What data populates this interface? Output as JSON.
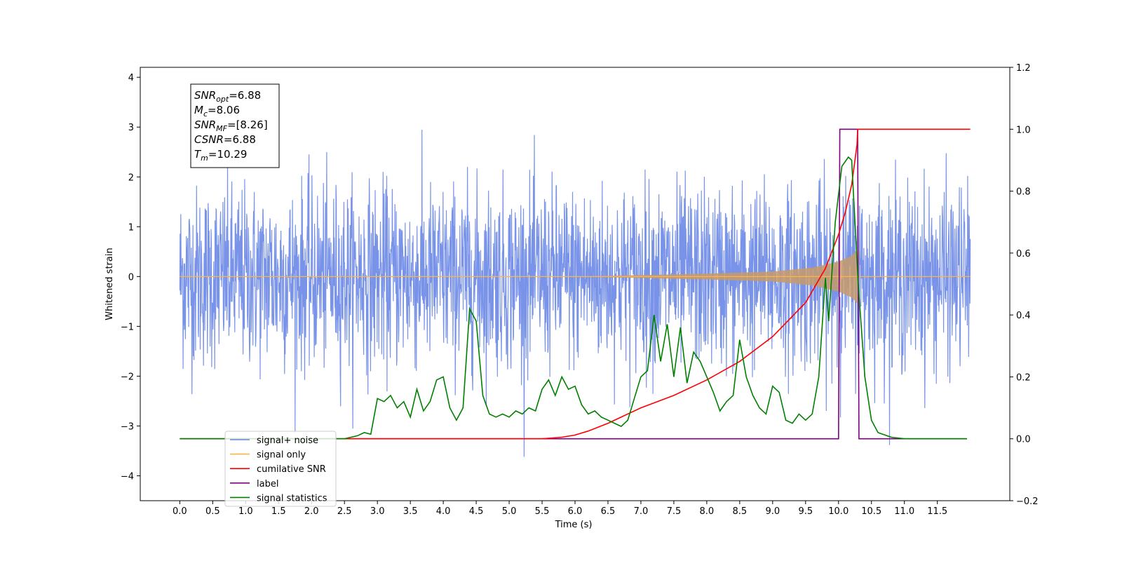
{
  "chart_data": {
    "type": "line",
    "xlabel": "Time (s)",
    "ylabel": "Whitened strain",
    "xlim": [
      -0.6,
      12.6
    ],
    "ylim": [
      -4.5,
      4.2
    ],
    "y2lim": [
      -0.2,
      1.2
    ],
    "x_ticks": [
      "0.0",
      "0.5",
      "1.0",
      "1.5",
      "2.0",
      "2.5",
      "3.0",
      "3.5",
      "4.0",
      "4.5",
      "5.0",
      "5.5",
      "6.0",
      "6.5",
      "7.0",
      "7.5",
      "8.0",
      "8.5",
      "9.0",
      "9.5",
      "10.0",
      "10.5",
      "11.0",
      "11.5"
    ],
    "y_ticks": [
      4,
      3,
      2,
      1,
      0,
      -1,
      -2,
      -3,
      -4
    ],
    "y_tick_labels": [
      "4",
      "3",
      "2",
      "1",
      "0",
      "−1",
      "−2",
      "−3",
      "−4"
    ],
    "y2_ticks": [
      1.2,
      1.0,
      0.8,
      0.6,
      0.4,
      0.2,
      0.0,
      -0.2
    ],
    "y2_tick_labels": [
      "1.2",
      "1.0",
      "0.8",
      "0.6",
      "0.4",
      "0.2",
      "0.0",
      "−0.2"
    ],
    "annotation": [
      {
        "base": "SNR",
        "sub": "opt",
        "value": "=6.88"
      },
      {
        "base": "M",
        "sub": "c",
        "value": "=8.06"
      },
      {
        "base": "SNR",
        "sub": "MF",
        "value": "=[8.26]"
      },
      {
        "base": "CSNR",
        "sub": "",
        "value": "=6.88"
      },
      {
        "base": "T",
        "sub": "m",
        "value": "=10.29"
      }
    ],
    "legend_position": "lower-left",
    "series": [
      {
        "name": "signal+ noise",
        "color": "#6a87e6",
        "axis": "left",
        "description_values": {
          "std": 0.9,
          "range": [
            0,
            12
          ]
        }
      },
      {
        "name": "signal only",
        "color": "#ffb347",
        "axis": "left",
        "points": [
          [
            0,
            0
          ],
          [
            6.0,
            0
          ],
          [
            7.0,
            0.03
          ],
          [
            8.0,
            0.06
          ],
          [
            9.0,
            0.1
          ],
          [
            9.6,
            0.18
          ],
          [
            10.0,
            0.3
          ],
          [
            10.2,
            0.42
          ],
          [
            10.29,
            0.55
          ],
          [
            10.29,
            0
          ],
          [
            12,
            0
          ]
        ]
      },
      {
        "name": "cumilative SNR",
        "color": "#ff0000",
        "axis": "right",
        "points": [
          [
            0,
            0
          ],
          [
            5.5,
            0.0
          ],
          [
            5.8,
            0.005
          ],
          [
            6.0,
            0.012
          ],
          [
            6.2,
            0.025
          ],
          [
            6.5,
            0.05
          ],
          [
            7.0,
            0.1
          ],
          [
            7.5,
            0.14
          ],
          [
            8.0,
            0.19
          ],
          [
            8.5,
            0.25
          ],
          [
            9.0,
            0.33
          ],
          [
            9.5,
            0.44
          ],
          [
            9.8,
            0.55
          ],
          [
            10.0,
            0.66
          ],
          [
            10.1,
            0.73
          ],
          [
            10.2,
            0.82
          ],
          [
            10.25,
            0.9
          ],
          [
            10.28,
            0.95
          ],
          [
            10.29,
            1.0
          ],
          [
            11.0,
            1.0
          ],
          [
            12.0,
            1.0
          ]
        ]
      },
      {
        "name": "label",
        "color": "#800080",
        "axis": "right",
        "points": [
          [
            0,
            0
          ],
          [
            10.0,
            0
          ],
          [
            10.02,
            1.0
          ],
          [
            10.29,
            1.0
          ],
          [
            10.31,
            0
          ],
          [
            11.95,
            0
          ]
        ]
      },
      {
        "name": "signal statistics",
        "color": "#008000",
        "axis": "right",
        "points": [
          [
            0,
            0
          ],
          [
            2.5,
            0.0
          ],
          [
            2.6,
            0.005
          ],
          [
            2.7,
            0.01
          ],
          [
            2.8,
            0.02
          ],
          [
            2.9,
            0.015
          ],
          [
            3.0,
            0.13
          ],
          [
            3.1,
            0.12
          ],
          [
            3.2,
            0.14
          ],
          [
            3.3,
            0.1
          ],
          [
            3.4,
            0.12
          ],
          [
            3.5,
            0.07
          ],
          [
            3.6,
            0.16
          ],
          [
            3.7,
            0.09
          ],
          [
            3.8,
            0.12
          ],
          [
            3.9,
            0.19
          ],
          [
            4.0,
            0.2
          ],
          [
            4.1,
            0.1
          ],
          [
            4.2,
            0.06
          ],
          [
            4.3,
            0.1
          ],
          [
            4.4,
            0.42
          ],
          [
            4.5,
            0.38
          ],
          [
            4.6,
            0.14
          ],
          [
            4.7,
            0.08
          ],
          [
            4.8,
            0.07
          ],
          [
            4.9,
            0.08
          ],
          [
            5.0,
            0.07
          ],
          [
            5.1,
            0.09
          ],
          [
            5.2,
            0.08
          ],
          [
            5.3,
            0.1
          ],
          [
            5.4,
            0.09
          ],
          [
            5.5,
            0.16
          ],
          [
            5.6,
            0.19
          ],
          [
            5.7,
            0.14
          ],
          [
            5.8,
            0.2
          ],
          [
            5.9,
            0.16
          ],
          [
            6.0,
            0.17
          ],
          [
            6.1,
            0.11
          ],
          [
            6.2,
            0.08
          ],
          [
            6.3,
            0.09
          ],
          [
            6.4,
            0.07
          ],
          [
            6.5,
            0.06
          ],
          [
            6.6,
            0.05
          ],
          [
            6.7,
            0.04
          ],
          [
            6.8,
            0.06
          ],
          [
            6.9,
            0.13
          ],
          [
            7.0,
            0.2
          ],
          [
            7.1,
            0.22
          ],
          [
            7.2,
            0.4
          ],
          [
            7.3,
            0.25
          ],
          [
            7.4,
            0.37
          ],
          [
            7.5,
            0.2
          ],
          [
            7.6,
            0.36
          ],
          [
            7.7,
            0.18
          ],
          [
            7.8,
            0.28
          ],
          [
            7.9,
            0.25
          ],
          [
            8.0,
            0.2
          ],
          [
            8.1,
            0.15
          ],
          [
            8.2,
            0.09
          ],
          [
            8.3,
            0.12
          ],
          [
            8.4,
            0.14
          ],
          [
            8.5,
            0.32
          ],
          [
            8.6,
            0.2
          ],
          [
            8.7,
            0.14
          ],
          [
            8.8,
            0.1
          ],
          [
            8.9,
            0.08
          ],
          [
            9.0,
            0.17
          ],
          [
            9.1,
            0.15
          ],
          [
            9.2,
            0.06
          ],
          [
            9.3,
            0.05
          ],
          [
            9.4,
            0.08
          ],
          [
            9.5,
            0.06
          ],
          [
            9.6,
            0.08
          ],
          [
            9.7,
            0.2
          ],
          [
            9.8,
            0.52
          ],
          [
            9.85,
            0.38
          ],
          [
            9.95,
            0.7
          ],
          [
            10.05,
            0.88
          ],
          [
            10.15,
            0.91
          ],
          [
            10.2,
            0.9
          ],
          [
            10.25,
            0.7
          ],
          [
            10.3,
            0.5
          ],
          [
            10.4,
            0.2
          ],
          [
            10.5,
            0.06
          ],
          [
            10.6,
            0.02
          ],
          [
            10.8,
            0.005
          ],
          [
            11.0,
            0.0
          ],
          [
            11.95,
            0.0
          ]
        ]
      }
    ]
  }
}
